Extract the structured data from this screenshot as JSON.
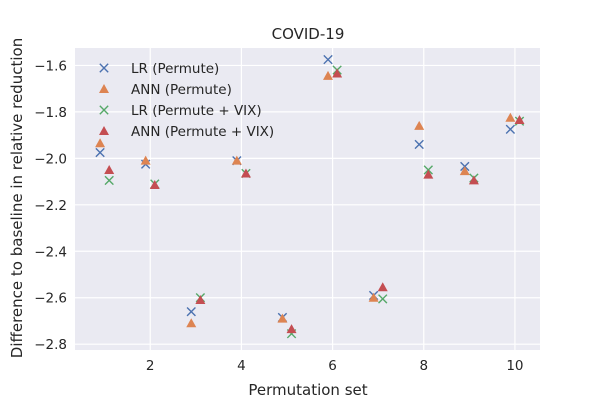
{
  "chart_data": {
    "type": "scatter",
    "title": "COVID-19",
    "xlabel": "Permutation set",
    "ylabel": "Difference to baseline in relative reduction",
    "xlim": [
      0.35,
      10.55
    ],
    "ylim": [
      -2.825,
      -1.525
    ],
    "xticks": [
      2,
      4,
      6,
      8,
      10
    ],
    "xtick_labels": [
      "2",
      "4",
      "6",
      "8",
      "10"
    ],
    "yticks": [
      -2.8,
      -2.6,
      -2.4,
      -2.2,
      -2.0,
      -1.8,
      -1.6
    ],
    "ytick_labels": [
      "−2.8",
      "−2.6",
      "−2.4",
      "−2.2",
      "−2.0",
      "−1.8",
      "−1.6"
    ],
    "grid": true,
    "legend_position": "top-left",
    "background": "#eaeaf2",
    "series": [
      {
        "name": "LR (Permute)",
        "marker": "x",
        "color": "#4c72b0",
        "x": [
          0.9,
          1.9,
          2.9,
          3.9,
          4.9,
          5.9,
          6.9,
          7.9,
          8.9,
          9.9
        ],
        "y": [
          -1.975,
          -2.025,
          -2.66,
          -2.01,
          -2.685,
          -1.575,
          -2.59,
          -1.94,
          -2.035,
          -1.875
        ]
      },
      {
        "name": "ANN (Permute)",
        "marker": "triangle",
        "color": "#dd8452",
        "x": [
          0.9,
          1.9,
          2.9,
          3.9,
          4.9,
          5.9,
          6.9,
          7.9,
          8.9,
          9.9
        ],
        "y": [
          -1.935,
          -2.01,
          -2.71,
          -2.01,
          -2.69,
          -1.645,
          -2.6,
          -1.86,
          -2.055,
          -1.825
        ]
      },
      {
        "name": "LR (Permute + VIX)",
        "marker": "x",
        "color": "#55a868",
        "x": [
          1.1,
          2.1,
          3.1,
          4.1,
          5.1,
          6.1,
          7.1,
          8.1,
          9.1,
          10.1
        ],
        "y": [
          -2.095,
          -2.11,
          -2.6,
          -2.065,
          -2.755,
          -1.62,
          -2.605,
          -2.05,
          -2.085,
          -1.84
        ]
      },
      {
        "name": "ANN (Permute + VIX)",
        "marker": "triangle",
        "color": "#c44e52",
        "x": [
          1.1,
          2.1,
          3.1,
          4.1,
          5.1,
          6.1,
          7.1,
          8.1,
          9.1,
          10.1
        ],
        "y": [
          -2.05,
          -2.115,
          -2.61,
          -2.065,
          -2.735,
          -1.635,
          -2.555,
          -2.07,
          -2.095,
          -1.835
        ]
      }
    ]
  }
}
